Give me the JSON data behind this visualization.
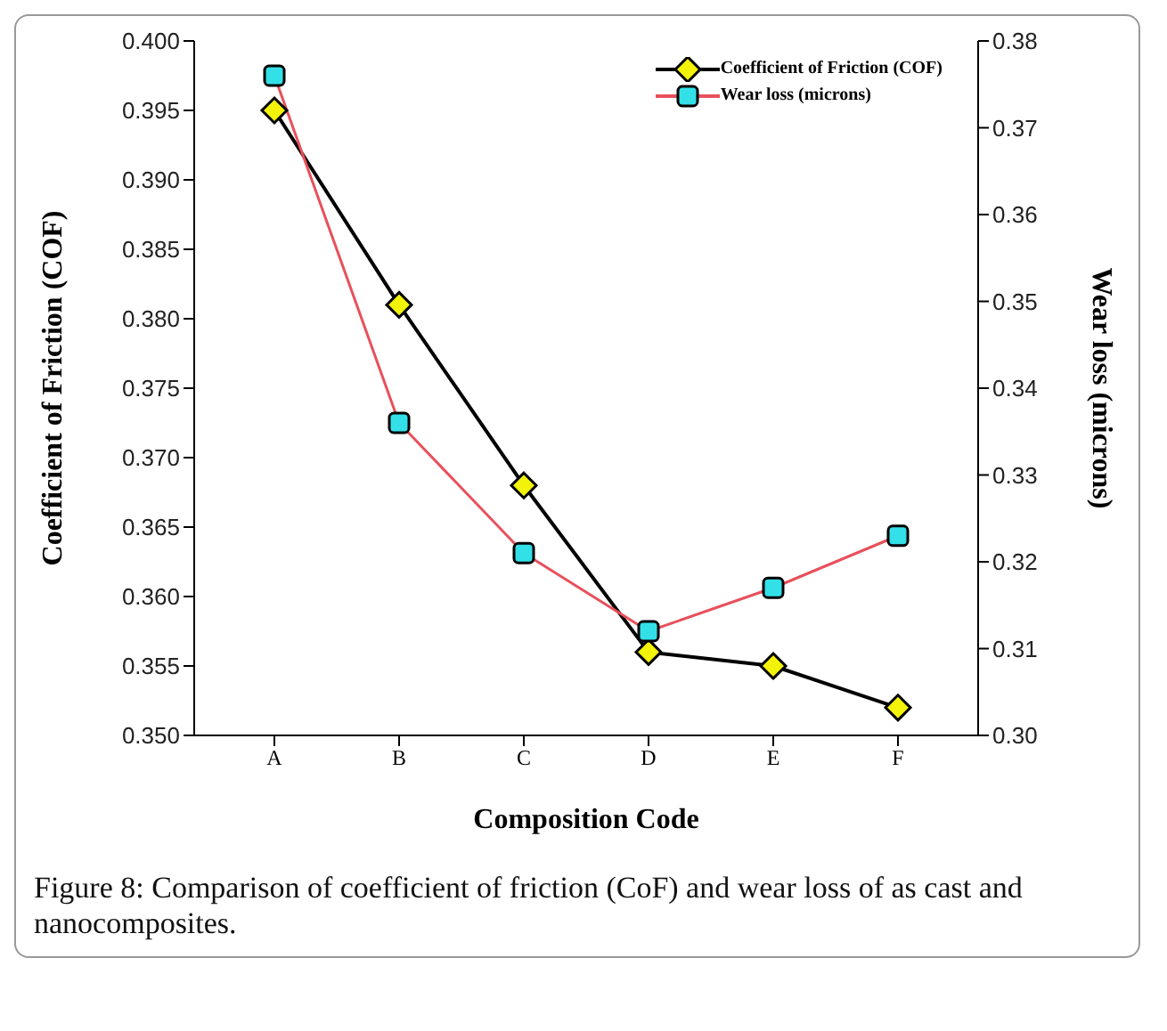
{
  "chart_data": {
    "type": "line",
    "xlabel": "Composition Code",
    "ylabel": "Coefficient of Friction (COF)",
    "y2label": "Wear loss (microns)",
    "categories": [
      "A",
      "B",
      "C",
      "D",
      "E",
      "F"
    ],
    "series": [
      {
        "name": "Coefficient of Friction (COF)",
        "color": "#000000",
        "marker": "diamond",
        "values": [
          0.395,
          0.381,
          0.368,
          0.356,
          0.355,
          0.352
        ]
      },
      {
        "name": "Wear loss (microns)",
        "color": "#e8505b",
        "marker": "square",
        "axis": "y2",
        "values": [
          0.376,
          0.336,
          0.321,
          0.312,
          0.317,
          0.323
        ]
      }
    ],
    "ylim": [
      0.35,
      0.4
    ],
    "yticks": [
      {
        "value": 0.35,
        "label": "0.350"
      },
      0.355,
      {
        "value": 0.36,
        "label": "0.360"
      },
      0.365,
      {
        "value": 0.37,
        "label": "0.370"
      },
      0.375,
      {
        "value": 0.38,
        "label": "0.380"
      },
      0.385,
      {
        "value": 0.39,
        "label": "0.390"
      },
      0.395,
      {
        "value": 0.4,
        "label": "0.400"
      }
    ],
    "y2lim": [
      0.3,
      0.38
    ],
    "y2ticks": [
      {
        "value": 0.3,
        "label": "0.30"
      },
      0.31,
      0.32,
      0.33,
      0.34,
      0.35,
      0.36,
      0.37,
      0.38
    ],
    "legend": "top right",
    "grid": false,
    "annotations": [
      "Figure 8: Comparison of coefficient of friction (CoF) and wear loss of as cast and nanocomposites."
    ]
  }
}
